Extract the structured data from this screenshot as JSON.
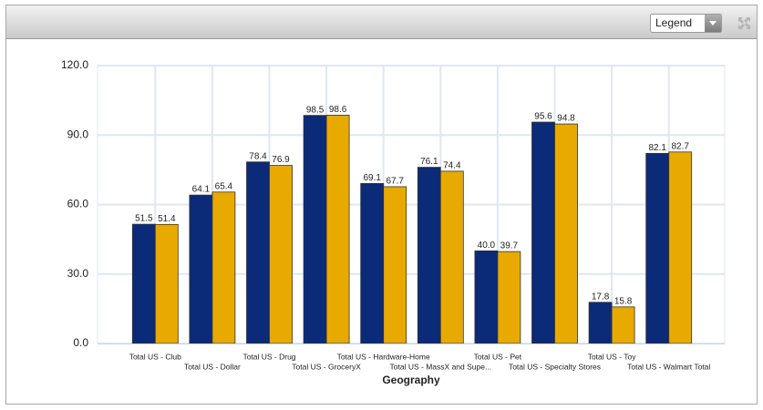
{
  "legend_button": "Legend",
  "chart_data": {
    "type": "bar",
    "categories": [
      "Total US - Club",
      "Total US - Dollar",
      "Total US - Drug",
      "Total US - GroceryX",
      "Total US - Hardware-Home",
      "Total US - MassX and Supe...",
      "Total US - Pet",
      "Total US - Specialty Stores",
      "Total US - Toy",
      "Total US - Walmart Total"
    ],
    "x_label": "Geography",
    "series": [
      {
        "color": "#0b2a78",
        "values": [
          51.5,
          64.1,
          78.4,
          98.5,
          69.1,
          76.1,
          40.0,
          95.6,
          17.8,
          82.1
        ],
        "value_labels": [
          "51.5",
          "64.1",
          "78.4",
          "98.5",
          "69.1",
          "76.1",
          "40.0",
          "95.6",
          "17.8",
          "82.1"
        ]
      },
      {
        "color": "#e8a900",
        "values": [
          51.4,
          65.4,
          76.9,
          98.6,
          67.7,
          74.4,
          39.7,
          94.8,
          15.8,
          82.7
        ],
        "value_labels": [
          "51.4",
          "65.4",
          "76.9",
          "98.6",
          "67.7",
          "74.4",
          "39.7",
          "94.8",
          "15.8",
          "82.7"
        ]
      }
    ],
    "ylim": [
      0,
      120
    ],
    "yticks": [
      {
        "value": 0,
        "label": "0.0"
      },
      {
        "value": 30,
        "label": "30.0"
      },
      {
        "value": 60,
        "label": "60.0"
      },
      {
        "value": 90,
        "label": "90.0"
      },
      {
        "value": 120,
        "label": "120.0"
      }
    ],
    "grid": true
  }
}
